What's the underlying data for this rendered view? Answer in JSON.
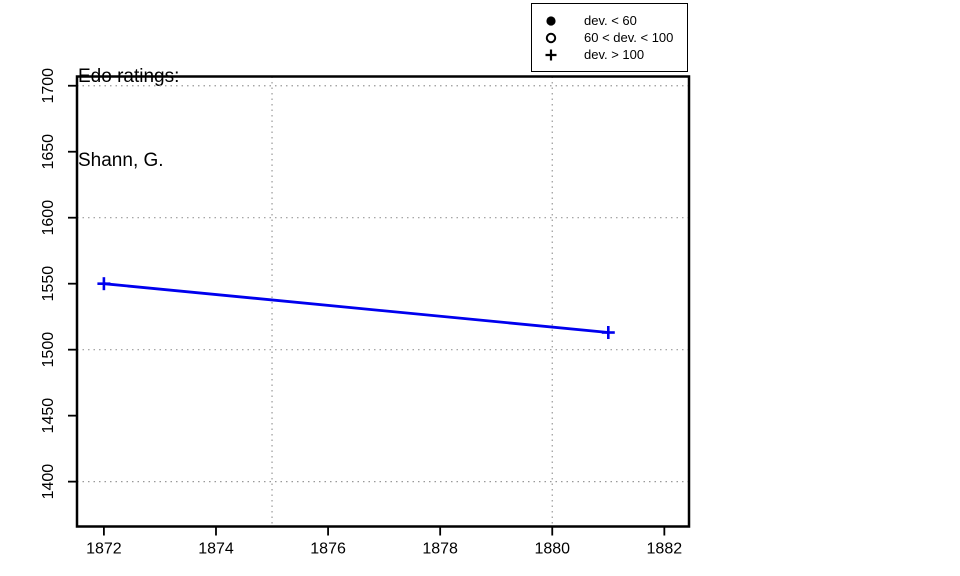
{
  "chart_data": {
    "type": "line",
    "title": "Edo ratings:",
    "subtitle": "Shann, G.",
    "series": [
      {
        "name": "Shann, G.",
        "color": "#0000EE",
        "marker": "plus",
        "points": [
          {
            "x": 1872,
            "y": 1550
          },
          {
            "x": 1881,
            "y": 1513
          }
        ]
      }
    ],
    "xlim": [
      1871.52,
      1882.44
    ],
    "ylim": [
      1366,
      1707
    ],
    "x_ticks": [
      1872,
      1874,
      1876,
      1878,
      1880,
      1882
    ],
    "y_ticks": [
      1400,
      1450,
      1500,
      1550,
      1600,
      1650,
      1700
    ],
    "x_gridlines": [
      1875,
      1880
    ],
    "y_gridlines": [
      1400,
      1500,
      1600,
      1700
    ],
    "grid_on": true,
    "grid_style": "dotted",
    "grid_color": "#999999",
    "box_color": "#000000",
    "legend_position": "top-right",
    "legend_items": [
      {
        "icon": "filled-circle",
        "label": "dev. < 60"
      },
      {
        "icon": "open-circle",
        "label": "60 < dev. < 100"
      },
      {
        "icon": "plus",
        "label": "dev. > 100"
      }
    ]
  }
}
